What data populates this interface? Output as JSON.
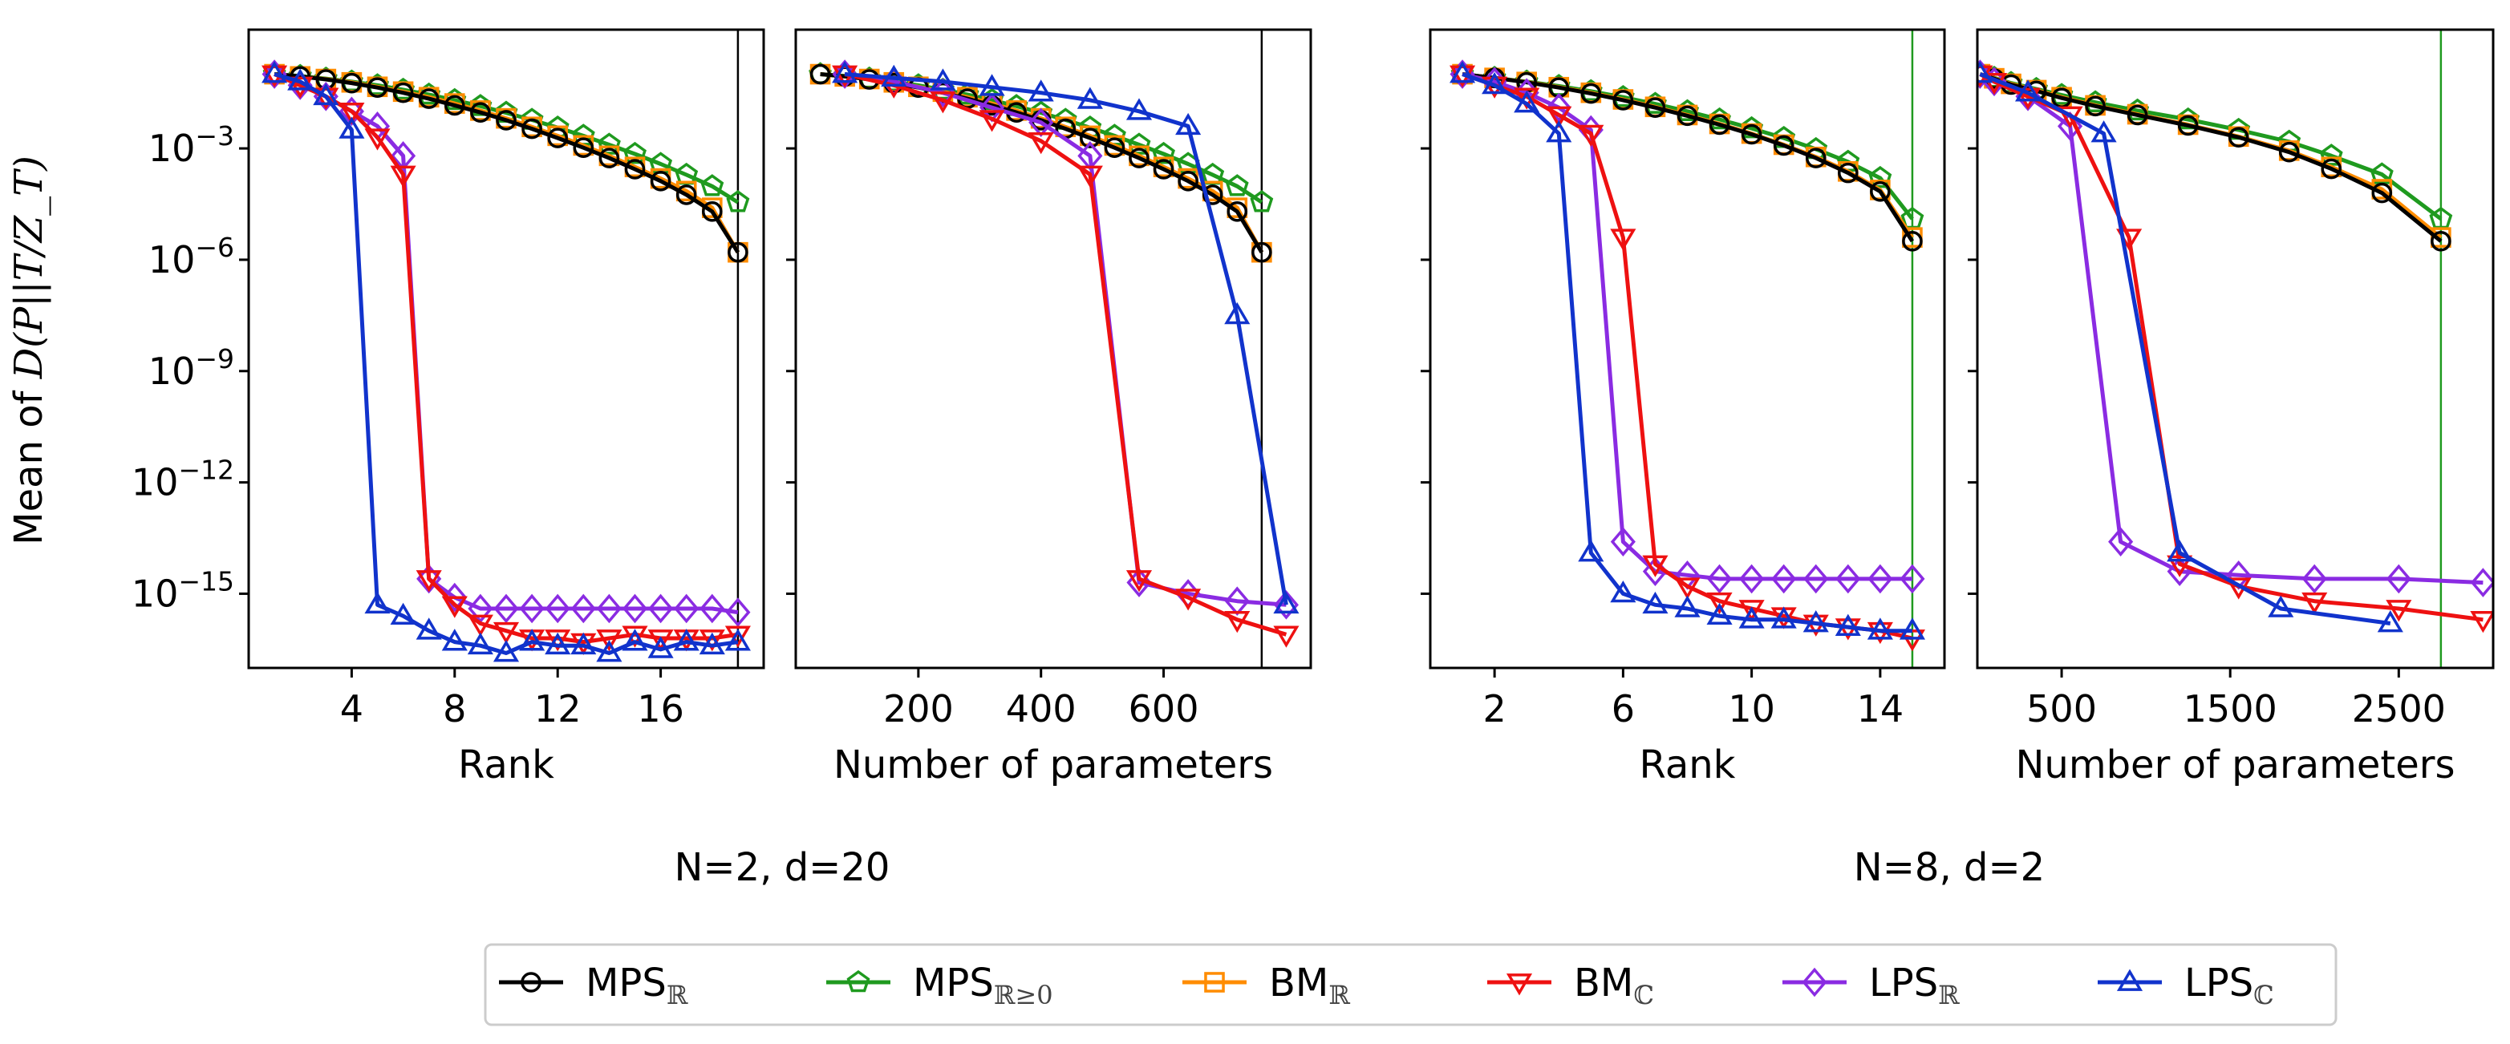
{
  "chart_data": [
    {
      "type": "line",
      "panel": "N=2, d=20 / rank",
      "group": "N=2, d=20",
      "xlabel": "Rank",
      "ylabel": "Mean of D(P||T/Z_T)",
      "xlim": [
        0,
        20
      ],
      "xticks": [
        4,
        8,
        12,
        16
      ],
      "ylog": true,
      "ylim_exp": [
        -17,
        0.2
      ],
      "yticks_exp": [
        -3,
        -6,
        -9,
        -12,
        -15
      ],
      "vline": {
        "x": 19,
        "color": "#000000"
      },
      "series": [
        {
          "name": "MPS_R",
          "color": "#000000",
          "marker": "circle",
          "x": [
            1,
            2,
            3,
            4,
            5,
            6,
            7,
            8,
            9,
            10,
            11,
            12,
            13,
            14,
            15,
            16,
            17,
            18,
            19
          ],
          "y": [
            -1.0,
            -1.06,
            -1.14,
            -1.24,
            -1.36,
            -1.5,
            -1.66,
            -1.84,
            -2.03,
            -2.24,
            -2.47,
            -2.72,
            -2.98,
            -3.26,
            -3.56,
            -3.88,
            -4.25,
            -4.7,
            -5.8
          ]
        },
        {
          "name": "MPS_R>=0",
          "color": "#1f9a1f",
          "marker": "pentagon",
          "x": [
            1,
            2,
            3,
            4,
            5,
            6,
            7,
            8,
            9,
            10,
            11,
            12,
            13,
            14,
            15,
            16,
            17,
            18,
            19
          ],
          "y": [
            -1.0,
            -1.05,
            -1.12,
            -1.2,
            -1.3,
            -1.42,
            -1.55,
            -1.7,
            -1.86,
            -2.04,
            -2.23,
            -2.44,
            -2.66,
            -2.9,
            -3.15,
            -3.42,
            -3.71,
            -4.02,
            -4.45
          ]
        },
        {
          "name": "BM_R",
          "color": "#ff8c00",
          "marker": "square",
          "x": [
            1,
            2,
            3,
            4,
            5,
            6,
            7,
            8,
            9,
            10,
            11,
            12,
            13,
            14,
            15,
            16,
            17,
            18,
            19
          ],
          "y": [
            -1.0,
            -1.06,
            -1.13,
            -1.22,
            -1.34,
            -1.47,
            -1.62,
            -1.79,
            -1.98,
            -2.19,
            -2.42,
            -2.66,
            -2.92,
            -3.2,
            -3.5,
            -3.81,
            -4.15,
            -4.6,
            -5.8
          ]
        },
        {
          "name": "BM_C",
          "color": "#ee1111",
          "marker": "triangle-down",
          "x": [
            1,
            2,
            3,
            4,
            5,
            6,
            7,
            8,
            9,
            10,
            11,
            12,
            13,
            14,
            15,
            16,
            17,
            18,
            19
          ],
          "y": [
            -1.0,
            -1.3,
            -1.6,
            -2.0,
            -2.7,
            -3.7,
            -14.6,
            -15.3,
            -15.8,
            -16.0,
            -16.2,
            -16.2,
            -16.3,
            -16.2,
            -16.1,
            -16.2,
            -16.2,
            -16.2,
            -16.1
          ]
        },
        {
          "name": "LPS_R",
          "color": "#8a2be2",
          "marker": "diamond",
          "x": [
            1,
            2,
            3,
            4,
            5,
            6,
            7,
            8,
            9,
            10,
            11,
            12,
            13,
            14,
            15,
            16,
            17,
            18,
            19
          ],
          "y": [
            -1.0,
            -1.3,
            -1.6,
            -2.0,
            -2.4,
            -3.2,
            -14.6,
            -15.1,
            -15.4,
            -15.4,
            -15.4,
            -15.4,
            -15.4,
            -15.4,
            -15.4,
            -15.4,
            -15.4,
            -15.4,
            -15.5
          ]
        },
        {
          "name": "LPS_C",
          "color": "#1133cc",
          "marker": "triangle-up",
          "x": [
            1,
            2,
            3,
            4,
            5,
            6,
            7,
            8,
            9,
            10,
            11,
            12,
            13,
            14,
            15,
            16,
            17,
            18,
            19
          ],
          "y": [
            -1.0,
            -1.2,
            -1.6,
            -2.5,
            -15.3,
            -15.6,
            -16.0,
            -16.3,
            -16.4,
            -16.6,
            -16.3,
            -16.4,
            -16.4,
            -16.6,
            -16.3,
            -16.5,
            -16.3,
            -16.4,
            -16.3
          ]
        }
      ]
    },
    {
      "type": "line",
      "panel": "N=2, d=20 / parameters",
      "group": "N=2, d=20",
      "xlabel": "Number of parameters",
      "xlim": [
        0,
        840
      ],
      "xticks": [
        200,
        400,
        600
      ],
      "ylog": true,
      "ylim_exp": [
        -17,
        0.2
      ],
      "yticks_exp": [
        -3,
        -6,
        -9,
        -12,
        -15
      ],
      "vline": {
        "x": 760,
        "color": "#000000"
      },
      "series": [
        {
          "name": "MPS_R",
          "color": "#000000",
          "marker": "circle",
          "x": [
            40,
            80,
            120,
            160,
            200,
            240,
            280,
            320,
            360,
            400,
            440,
            480,
            520,
            560,
            600,
            640,
            680,
            720,
            760
          ],
          "y": [
            -1.0,
            -1.06,
            -1.14,
            -1.24,
            -1.36,
            -1.5,
            -1.66,
            -1.84,
            -2.03,
            -2.24,
            -2.47,
            -2.72,
            -2.98,
            -3.26,
            -3.56,
            -3.88,
            -4.25,
            -4.7,
            -5.8
          ]
        },
        {
          "name": "MPS_R>=0",
          "color": "#1f9a1f",
          "marker": "pentagon",
          "x": [
            40,
            80,
            120,
            160,
            200,
            240,
            280,
            320,
            360,
            400,
            440,
            480,
            520,
            560,
            600,
            640,
            680,
            720,
            760
          ],
          "y": [
            -1.0,
            -1.05,
            -1.12,
            -1.2,
            -1.3,
            -1.42,
            -1.55,
            -1.7,
            -1.86,
            -2.04,
            -2.23,
            -2.44,
            -2.66,
            -2.9,
            -3.15,
            -3.42,
            -3.71,
            -4.02,
            -4.45
          ]
        },
        {
          "name": "BM_R",
          "color": "#ff8c00",
          "marker": "square",
          "x": [
            40,
            80,
            120,
            160,
            200,
            240,
            280,
            320,
            360,
            400,
            440,
            480,
            520,
            560,
            600,
            640,
            680,
            720,
            760
          ],
          "y": [
            -1.0,
            -1.06,
            -1.13,
            -1.22,
            -1.34,
            -1.47,
            -1.62,
            -1.79,
            -1.98,
            -2.19,
            -2.42,
            -2.66,
            -2.92,
            -3.2,
            -3.5,
            -3.81,
            -4.15,
            -4.6,
            -5.8
          ]
        },
        {
          "name": "BM_C",
          "color": "#ee1111",
          "marker": "triangle-down",
          "x": [
            80,
            160,
            240,
            320,
            400,
            480,
            560,
            640,
            720,
            800
          ],
          "y": [
            -1.0,
            -1.3,
            -1.7,
            -2.2,
            -2.8,
            -3.7,
            -14.6,
            -15.1,
            -15.7,
            -16.1
          ]
        },
        {
          "name": "LPS_R",
          "color": "#8a2be2",
          "marker": "diamond",
          "x": [
            80,
            160,
            240,
            320,
            400,
            480,
            560,
            640,
            720,
            800
          ],
          "y": [
            -1.0,
            -1.2,
            -1.5,
            -1.9,
            -2.3,
            -3.2,
            -14.7,
            -15.0,
            -15.2,
            -15.3
          ]
        },
        {
          "name": "LPS_C",
          "color": "#1133cc",
          "marker": "triangle-up",
          "x": [
            80,
            160,
            240,
            320,
            400,
            480,
            560,
            640,
            720,
            800
          ],
          "y": [
            -1.0,
            -1.1,
            -1.2,
            -1.35,
            -1.5,
            -1.7,
            -2.0,
            -2.4,
            -7.5,
            -15.3
          ]
        }
      ]
    },
    {
      "type": "line",
      "panel": "N=8, d=2 / rank",
      "group": "N=8, d=2",
      "xlabel": "Rank",
      "xlim": [
        0,
        16
      ],
      "xticks": [
        2,
        6,
        10,
        14
      ],
      "ylog": true,
      "ylim_exp": [
        -17,
        0.2
      ],
      "yticks_exp": [
        -3,
        -6,
        -9,
        -12,
        -15
      ],
      "vline": {
        "x": 15,
        "color": "#1f9a1f"
      },
      "series": [
        {
          "name": "MPS_R",
          "color": "#000000",
          "marker": "circle",
          "x": [
            1,
            2,
            3,
            4,
            5,
            6,
            7,
            8,
            9,
            10,
            11,
            12,
            13,
            14,
            15
          ],
          "y": [
            -1.0,
            -1.1,
            -1.22,
            -1.36,
            -1.52,
            -1.7,
            -1.9,
            -2.12,
            -2.36,
            -2.62,
            -2.92,
            -3.26,
            -3.66,
            -4.16,
            -5.5
          ]
        },
        {
          "name": "MPS_R>=0",
          "color": "#1f9a1f",
          "marker": "pentagon",
          "x": [
            1,
            2,
            3,
            4,
            5,
            6,
            7,
            8,
            9,
            10,
            11,
            12,
            13,
            14,
            15
          ],
          "y": [
            -1.0,
            -1.1,
            -1.2,
            -1.32,
            -1.46,
            -1.62,
            -1.8,
            -2.0,
            -2.22,
            -2.46,
            -2.72,
            -3.02,
            -3.36,
            -3.8,
            -4.9
          ]
        },
        {
          "name": "BM_R",
          "color": "#ff8c00",
          "marker": "square",
          "x": [
            1,
            2,
            3,
            4,
            5,
            6,
            7,
            8,
            9,
            10,
            11,
            12,
            13,
            14,
            15
          ],
          "y": [
            -1.0,
            -1.1,
            -1.21,
            -1.35,
            -1.5,
            -1.68,
            -1.88,
            -2.1,
            -2.34,
            -2.6,
            -2.9,
            -3.23,
            -3.62,
            -4.12,
            -5.4
          ]
        },
        {
          "name": "BM_C",
          "color": "#ee1111",
          "marker": "triangle-down",
          "x": [
            1,
            2,
            3,
            4,
            5,
            6,
            7,
            8,
            9,
            10,
            11,
            12,
            13,
            14,
            15
          ],
          "y": [
            -1.0,
            -1.3,
            -1.6,
            -2.1,
            -2.6,
            -5.4,
            -14.2,
            -14.8,
            -15.2,
            -15.4,
            -15.6,
            -15.8,
            -15.9,
            -16.0,
            -16.2
          ]
        },
        {
          "name": "LPS_R",
          "color": "#8a2be2",
          "marker": "diamond",
          "x": [
            1,
            2,
            3,
            4,
            5,
            6,
            7,
            8,
            9,
            10,
            11,
            12,
            13,
            14,
            15
          ],
          "y": [
            -1.0,
            -1.2,
            -1.5,
            -1.9,
            -2.5,
            -13.6,
            -14.4,
            -14.5,
            -14.6,
            -14.6,
            -14.6,
            -14.6,
            -14.6,
            -14.6,
            -14.6
          ]
        },
        {
          "name": "LPS_C",
          "color": "#1133cc",
          "marker": "triangle-up",
          "x": [
            1,
            2,
            3,
            4,
            5,
            6,
            7,
            8,
            9,
            10,
            11,
            12,
            13,
            14,
            15
          ],
          "y": [
            -1.0,
            -1.3,
            -1.8,
            -2.6,
            -13.9,
            -15.0,
            -15.3,
            -15.4,
            -15.6,
            -15.7,
            -15.7,
            -15.8,
            -15.9,
            -16.0,
            -16.0
          ]
        }
      ]
    },
    {
      "type": "line",
      "panel": "N=8, d=2 / parameters",
      "group": "N=8, d=2",
      "xlabel": "Number of parameters",
      "xlim": [
        0,
        3060
      ],
      "xticks": [
        500,
        1500,
        2500
      ],
      "ylog": true,
      "ylim_exp": [
        -17,
        0.2
      ],
      "yticks_exp": [
        -3,
        -6,
        -9,
        -12,
        -15
      ],
      "vline": {
        "x": 2750,
        "color": "#1f9a1f"
      },
      "series": [
        {
          "name": "MPS_R",
          "color": "#000000",
          "marker": "circle",
          "x": [
            16,
            100,
            200,
            350,
            500,
            700,
            950,
            1250,
            1550,
            1850,
            2100,
            2400,
            2750
          ],
          "y": [
            -1.0,
            -1.12,
            -1.28,
            -1.45,
            -1.64,
            -1.86,
            -2.1,
            -2.38,
            -2.7,
            -3.1,
            -3.55,
            -4.2,
            -5.5
          ]
        },
        {
          "name": "MPS_R>=0",
          "color": "#1f9a1f",
          "marker": "pentagon",
          "x": [
            16,
            100,
            200,
            350,
            500,
            700,
            950,
            1250,
            1550,
            1850,
            2100,
            2400,
            2750
          ],
          "y": [
            -1.0,
            -1.1,
            -1.24,
            -1.4,
            -1.56,
            -1.76,
            -1.98,
            -2.22,
            -2.5,
            -2.82,
            -3.2,
            -3.7,
            -4.9
          ]
        },
        {
          "name": "BM_R",
          "color": "#ff8c00",
          "marker": "square",
          "x": [
            16,
            100,
            200,
            350,
            500,
            700,
            950,
            1250,
            1550,
            1850,
            2100,
            2400,
            2750
          ],
          "y": [
            -1.0,
            -1.11,
            -1.26,
            -1.43,
            -1.62,
            -1.84,
            -2.08,
            -2.36,
            -2.68,
            -3.06,
            -3.5,
            -4.1,
            -5.4
          ]
        },
        {
          "name": "BM_C",
          "color": "#ee1111",
          "marker": "triangle-down",
          "x": [
            16,
            100,
            300,
            550,
            900,
            1200,
            1550,
            2000,
            2500,
            3000
          ],
          "y": [
            -1.0,
            -1.2,
            -1.6,
            -2.1,
            -5.4,
            -14.2,
            -14.8,
            -15.2,
            -15.4,
            -15.7
          ]
        },
        {
          "name": "LPS_R",
          "color": "#8a2be2",
          "marker": "diamond",
          "x": [
            16,
            100,
            300,
            550,
            850,
            1200,
            1550,
            2000,
            2500,
            3000
          ],
          "y": [
            -1.0,
            -1.2,
            -1.6,
            -2.4,
            -13.6,
            -14.4,
            -14.5,
            -14.6,
            -14.6,
            -14.7
          ]
        },
        {
          "name": "LPS_C",
          "color": "#1133cc",
          "marker": "triangle-up",
          "x": [
            16,
            300,
            750,
            1200,
            1800,
            2450
          ],
          "y": [
            -1.0,
            -1.5,
            -2.6,
            -13.9,
            -15.4,
            -15.8
          ]
        }
      ]
    }
  ],
  "labels": {
    "ylabel_prefix": "Mean of ",
    "ylabel_math": "D(P||T/Z_T)",
    "ytick_base": "10",
    "ytick_exps": [
      "−3",
      "−6",
      "−9",
      "−12",
      "−15"
    ],
    "panel_xlabels": [
      "Rank",
      "Number of parameters",
      "Rank",
      "Number of parameters"
    ],
    "xticklabels": [
      [
        "4",
        "8",
        "12",
        "16"
      ],
      [
        "200",
        "400",
        "600"
      ],
      [
        "2",
        "6",
        "10",
        "14"
      ],
      [
        "500",
        "1500",
        "2500"
      ]
    ],
    "group_titles": [
      "N=2, d=20",
      "N=8, d=2"
    ]
  },
  "legend": {
    "items": [
      {
        "base": "MPS",
        "sub": "ℝ",
        "color": "#000000",
        "marker": "circle"
      },
      {
        "base": "MPS",
        "sub": "ℝ≥0",
        "color": "#1f9a1f",
        "marker": "pentagon"
      },
      {
        "base": "BM",
        "sub": "ℝ",
        "color": "#ff8c00",
        "marker": "square"
      },
      {
        "base": "BM",
        "sub": "ℂ",
        "color": "#ee1111",
        "marker": "triangle-down"
      },
      {
        "base": "LPS",
        "sub": "ℝ",
        "color": "#8a2be2",
        "marker": "diamond"
      },
      {
        "base": "LPS",
        "sub": "ℂ",
        "color": "#1133cc",
        "marker": "triangle-up"
      }
    ]
  }
}
